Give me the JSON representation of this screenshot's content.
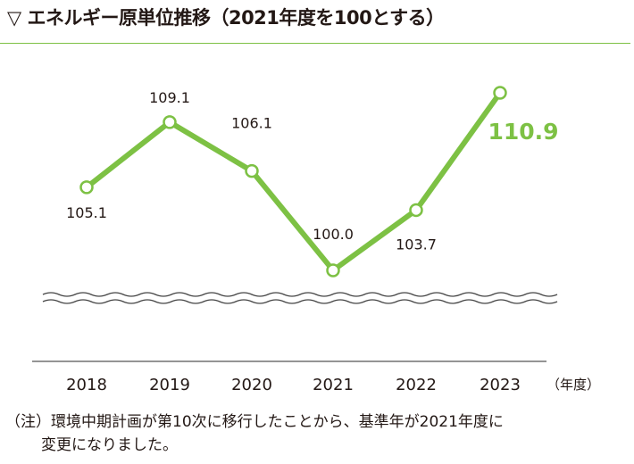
{
  "title": "▽ エネルギー原単位推移（2021年度を100とする）",
  "colors": {
    "accent": "#7dc144",
    "text": "#231815",
    "axis": "#555555"
  },
  "chart_data": {
    "type": "line",
    "categories": [
      "2018",
      "2019",
      "2020",
      "2021",
      "2022",
      "2023"
    ],
    "values": [
      105.1,
      109.1,
      106.1,
      100.0,
      103.7,
      110.9
    ],
    "value_labels": [
      "105.1",
      "109.1",
      "106.1",
      "100.0",
      "103.7",
      "110.9"
    ],
    "unit_label": "（年度）",
    "axis_break": true,
    "grid": false,
    "highlight_last": true
  },
  "note": {
    "line1": "（注）環境中期計画が第10次に移行したことから、基準年が2021年度に",
    "line2": "変更になりました。"
  }
}
